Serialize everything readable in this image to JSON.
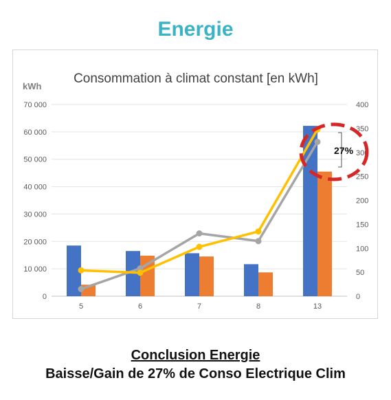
{
  "header": {
    "title": "Energie"
  },
  "chart_data": {
    "type": "bar",
    "title": "Consommation à climat constant [en kWh]",
    "ylabel": "kWh",
    "xlabel": "",
    "categories": [
      "5",
      "6",
      "7",
      "8",
      "13"
    ],
    "ylim": [
      0,
      70000
    ],
    "y2lim": [
      0,
      400
    ],
    "yticks": [
      "0",
      "10 000",
      "20 000",
      "30 000",
      "40 000",
      "50 000",
      "60 000",
      "70 000"
    ],
    "y2ticks": [
      "0",
      "50",
      "100",
      "150",
      "200",
      "250",
      "300",
      "350",
      "400"
    ],
    "grid": true,
    "series": [
      {
        "type": "bar",
        "axis": "left",
        "color": "#4472c4",
        "values": [
          18500,
          16500,
          15700,
          11700,
          62200
        ]
      },
      {
        "type": "bar",
        "axis": "left",
        "color": "#ed7d31",
        "values": [
          4200,
          14800,
          14500,
          8700,
          45500
        ]
      },
      {
        "type": "line",
        "axis": "right",
        "color": "#a5a5a5",
        "values": [
          15,
          58,
          131,
          115,
          322
        ]
      },
      {
        "type": "line",
        "axis": "right",
        "color": "#ffc000",
        "values": [
          54,
          49,
          103,
          135,
          348
        ]
      }
    ],
    "annotations": [
      {
        "text": "27%"
      }
    ]
  },
  "conclusion": {
    "title": "Conclusion Energie",
    "text": "Baisse/Gain de 27% de Conso Electrique Clim"
  }
}
